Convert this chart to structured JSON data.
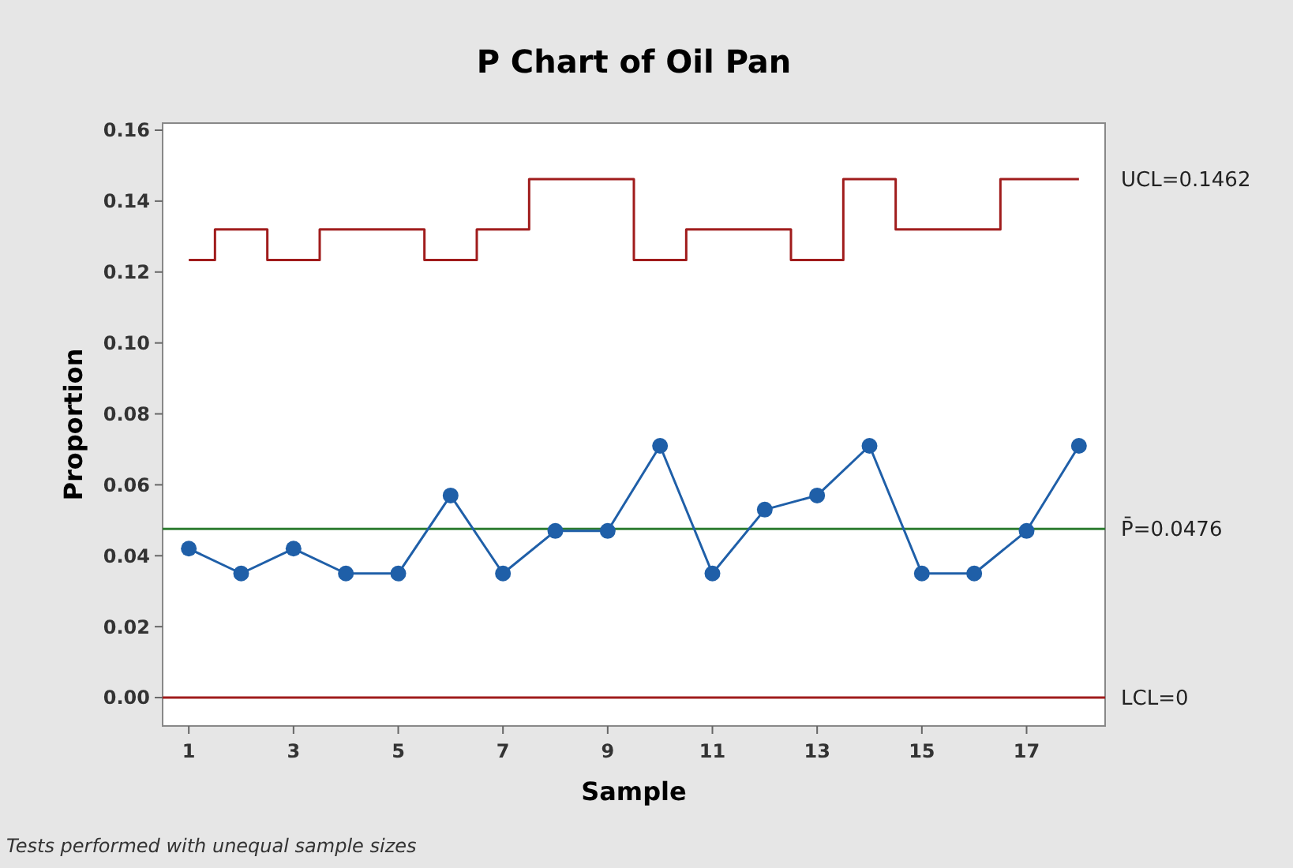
{
  "chart_data": {
    "type": "line",
    "title": "P Chart of Oil Pan",
    "xlabel": "Sample",
    "ylabel": "Proportion",
    "x": [
      1,
      2,
      3,
      4,
      5,
      6,
      7,
      8,
      9,
      10,
      11,
      12,
      13,
      14,
      15,
      16,
      17,
      18
    ],
    "series": [
      {
        "color": "#1f5fa8",
        "marker": "circle",
        "values": [
          0.042,
          0.035,
          0.042,
          0.035,
          0.035,
          0.057,
          0.035,
          0.047,
          0.047,
          0.071,
          0.035,
          0.053,
          0.057,
          0.071,
          0.035,
          0.035,
          0.047,
          0.071
        ]
      },
      {
        "type": "step",
        "name": "UCL=0.1462",
        "color": "#a01c1c",
        "marker": "none",
        "values": [
          0.1234,
          0.132,
          0.1234,
          0.132,
          0.132,
          0.1234,
          0.132,
          0.1462,
          0.1462,
          0.1234,
          0.132,
          0.132,
          0.1234,
          0.1462,
          0.132,
          0.132,
          0.1462,
          0.1462
        ]
      }
    ],
    "ref_lines": [
      {
        "axis": "y",
        "value": 0.0476,
        "label": "P̄=0.0476",
        "color": "#2e7d32"
      },
      {
        "axis": "y",
        "value": 0,
        "label": "LCL=0",
        "color": "#a01c1c"
      }
    ],
    "xlim": [
      0.5,
      18.5
    ],
    "xticks": [
      1,
      3,
      5,
      7,
      9,
      11,
      13,
      15,
      17
    ],
    "ylim": [
      -0.008,
      0.162
    ],
    "yticks": [
      {
        "value": 0,
        "label": "0.00"
      },
      {
        "value": 0.02,
        "label": "0.02"
      },
      {
        "value": 0.04,
        "label": "0.04"
      },
      {
        "value": 0.06,
        "label": "0.06"
      },
      {
        "value": 0.08,
        "label": "0.08"
      },
      {
        "value": 0.1,
        "label": "0.10"
      },
      {
        "value": 0.12,
        "label": "0.12"
      },
      {
        "value": 0.14,
        "label": "0.14"
      },
      {
        "value": 0.16,
        "label": "0.16"
      }
    ],
    "annotations": [
      "Tests performed with unequal sample sizes"
    ],
    "grid": false
  }
}
